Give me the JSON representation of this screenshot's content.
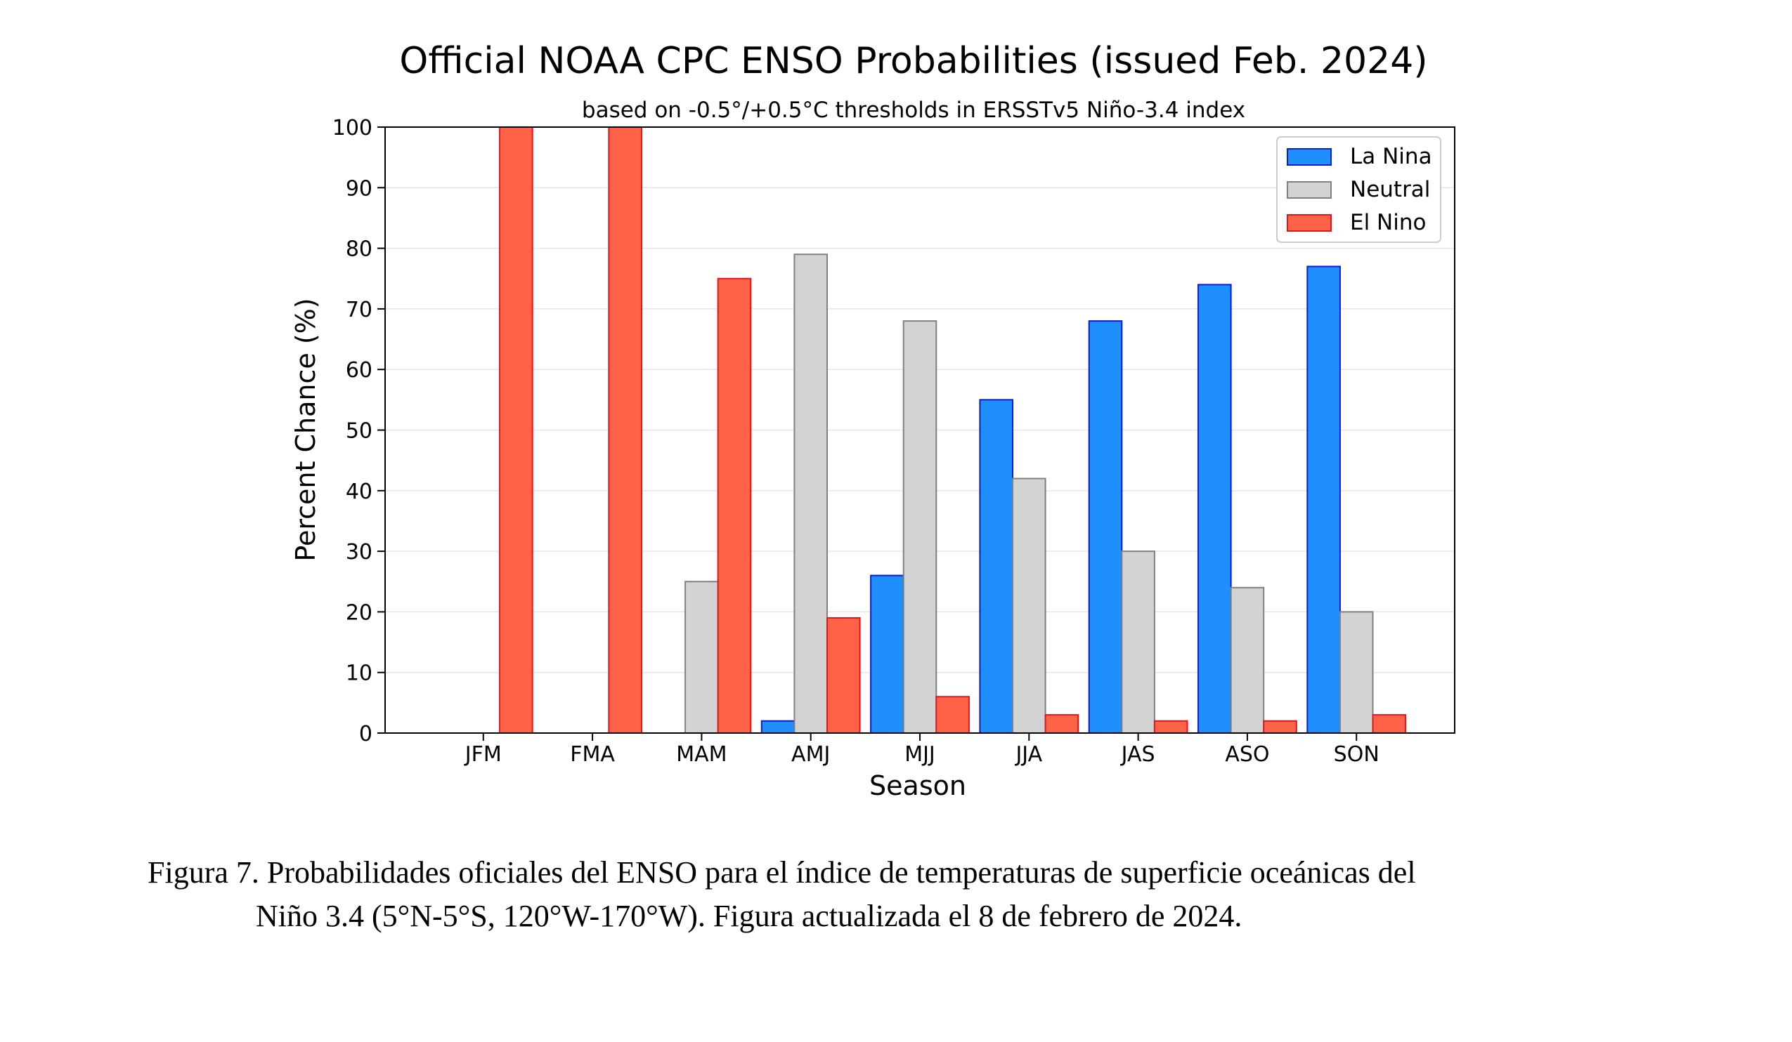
{
  "chart_data": {
    "type": "bar",
    "title": "Official NOAA CPC ENSO Probabilities (issued Feb. 2024)",
    "subtitle": "based on -0.5°/+0.5°C thresholds in ERSSTv5 Niño-3.4 index",
    "xlabel": "Season",
    "ylabel": "Percent Chance (%)",
    "ylim": [
      0,
      100
    ],
    "yticks": [
      "0",
      "10",
      "20",
      "30",
      "40",
      "50",
      "60",
      "70",
      "80",
      "90",
      "100"
    ],
    "categories": [
      "JFM",
      "FMA",
      "MAM",
      "AMJ",
      "MJJ",
      "JJA",
      "JAS",
      "ASO",
      "SON"
    ],
    "series": [
      {
        "name": "La Nina",
        "values": [
          0,
          0,
          0,
          2,
          26,
          55,
          68,
          74,
          77
        ],
        "color": "#1f8ffe",
        "edge": "#0a1bd6"
      },
      {
        "name": "Neutral",
        "values": [
          0,
          0,
          25,
          79,
          68,
          42,
          30,
          24,
          20
        ],
        "color": "#d3d3d3",
        "edge": "#808080"
      },
      {
        "name": "El Nino",
        "values": [
          100,
          100,
          75,
          19,
          6,
          3,
          2,
          2,
          3
        ],
        "color": "#ff6347",
        "edge": "#e0161b"
      }
    ],
    "grid": true,
    "legend_position": "top-right"
  },
  "caption": {
    "line1": "Figura 7. Probabilidades oficiales del ENSO para el índice de temperaturas de superficie oceánicas del",
    "line2": "Niño 3.4 (5°N-5°S, 120°W-170°W). Figura actualizada el 8 de febrero de 2024."
  }
}
